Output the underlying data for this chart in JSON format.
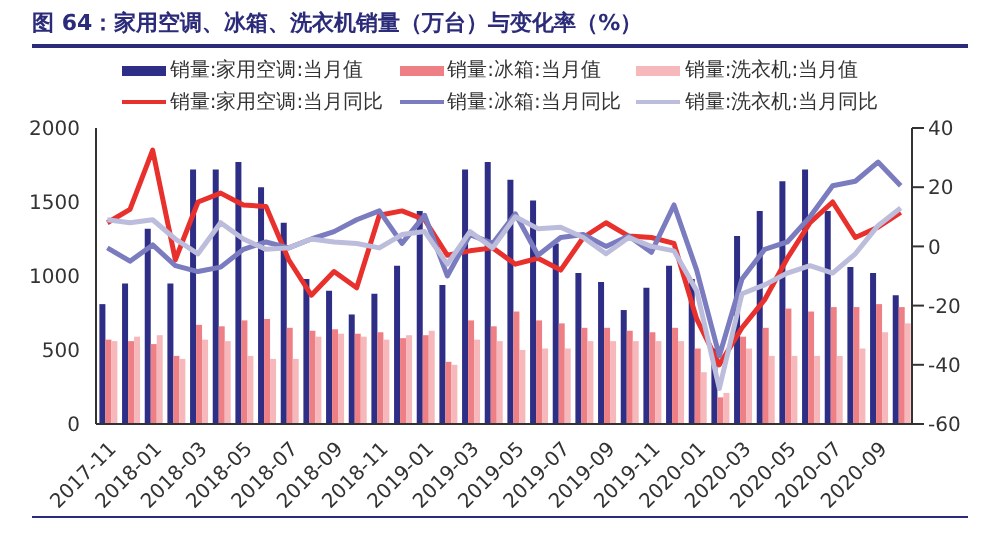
{
  "chart_data": {
    "type": "bar",
    "title": "图 64：家用空调、冰箱、洗衣机销量（万台）与变化率（%）",
    "categories": [
      "2017-11",
      null,
      "2018-01",
      null,
      "2018-03",
      null,
      "2018-05",
      null,
      "2018-07",
      null,
      "2018-09",
      null,
      "2018-11",
      null,
      "2019-01",
      null,
      "2019-03",
      null,
      "2019-05",
      null,
      "2019-07",
      null,
      "2019-09",
      null,
      "2019-11",
      null,
      "2020-01",
      null,
      "2020-03",
      null,
      "2020-05",
      null,
      "2020-07",
      null,
      "2020-09",
      null
    ],
    "series": [
      {
        "name": "销量:家用空调:当月值",
        "color": "#2e2e86",
        "values": [
          810,
          950,
          1320,
          950,
          1720,
          1720,
          1770,
          1600,
          1360,
          980,
          900,
          740,
          880,
          1070,
          1440,
          940,
          1720,
          1770,
          1650,
          1510,
          1220,
          1020,
          960,
          770,
          920,
          1070,
          980,
          510,
          1270,
          1440,
          1640,
          1720,
          1440,
          1060,
          1020,
          870
        ]
      },
      {
        "name": "销量:冰箱:当月值",
        "color": "#ee7f84",
        "values": [
          570,
          560,
          540,
          460,
          670,
          660,
          700,
          710,
          650,
          630,
          640,
          610,
          620,
          580,
          600,
          420,
          700,
          660,
          760,
          700,
          680,
          650,
          650,
          630,
          620,
          650,
          510,
          180,
          590,
          650,
          780,
          760,
          790,
          790,
          810,
          790
        ]
      },
      {
        "name": "销量:洗衣机:当月值",
        "color": "#f6b8bb",
        "values": [
          560,
          590,
          600,
          440,
          570,
          560,
          460,
          440,
          440,
          590,
          610,
          590,
          570,
          600,
          630,
          400,
          570,
          560,
          500,
          510,
          510,
          560,
          560,
          560,
          560,
          560,
          350,
          210,
          510,
          460,
          460,
          460,
          460,
          510,
          620,
          680
        ]
      },
      {
        "name": "销量:家用空调:当月同比",
        "type": "line",
        "axis": "y2",
        "color": "#e8302c",
        "values": [
          8,
          12.5,
          32.5,
          -4.5,
          15,
          18,
          14,
          13.5,
          -4.5,
          -16.5,
          -8.5,
          -14,
          10.5,
          12,
          9,
          -3,
          -1.5,
          -0.5,
          -6,
          -4,
          -8,
          3,
          8,
          3.5,
          3,
          1,
          -24.5,
          -40,
          -27.5,
          -18,
          -4,
          8,
          15,
          3,
          6.5,
          11.5
        ]
      },
      {
        "name": "销量:冰箱:当月同比",
        "type": "line",
        "axis": "y2",
        "color": "#7b7bbf",
        "values": [
          -0.5,
          -5,
          0.5,
          -6.5,
          -8.5,
          -7,
          -1,
          1.5,
          -0.5,
          2.5,
          5,
          9,
          12,
          1,
          10.5,
          -10,
          4,
          1,
          11,
          -3,
          3,
          4,
          0,
          3.5,
          -2,
          14,
          -8,
          -37,
          -11,
          -1,
          1.5,
          10,
          20.5,
          22,
          28.5,
          20.5
        ]
      },
      {
        "name": "销量:洗衣机:当月同比",
        "type": "line",
        "axis": "y2",
        "color": "#bcbcdc",
        "values": [
          9,
          8,
          9,
          2.5,
          -2.5,
          8,
          2.5,
          -1,
          -0.5,
          2.5,
          1.5,
          1,
          -0.5,
          4,
          5,
          -6,
          5,
          -0.5,
          10,
          6,
          6.5,
          3,
          -2.5,
          3,
          0,
          -1.5,
          -15,
          -48,
          -16,
          -13,
          -9,
          -6.5,
          -9,
          -2.5,
          7,
          13
        ]
      }
    ],
    "ylim": [
      0,
      2000
    ],
    "yticks": [
      0,
      500,
      1000,
      1500,
      2000
    ],
    "y2lim": [
      -60,
      40
    ],
    "y2ticks": [
      -60,
      -40,
      -20,
      0,
      20,
      40
    ],
    "legend": "top"
  }
}
